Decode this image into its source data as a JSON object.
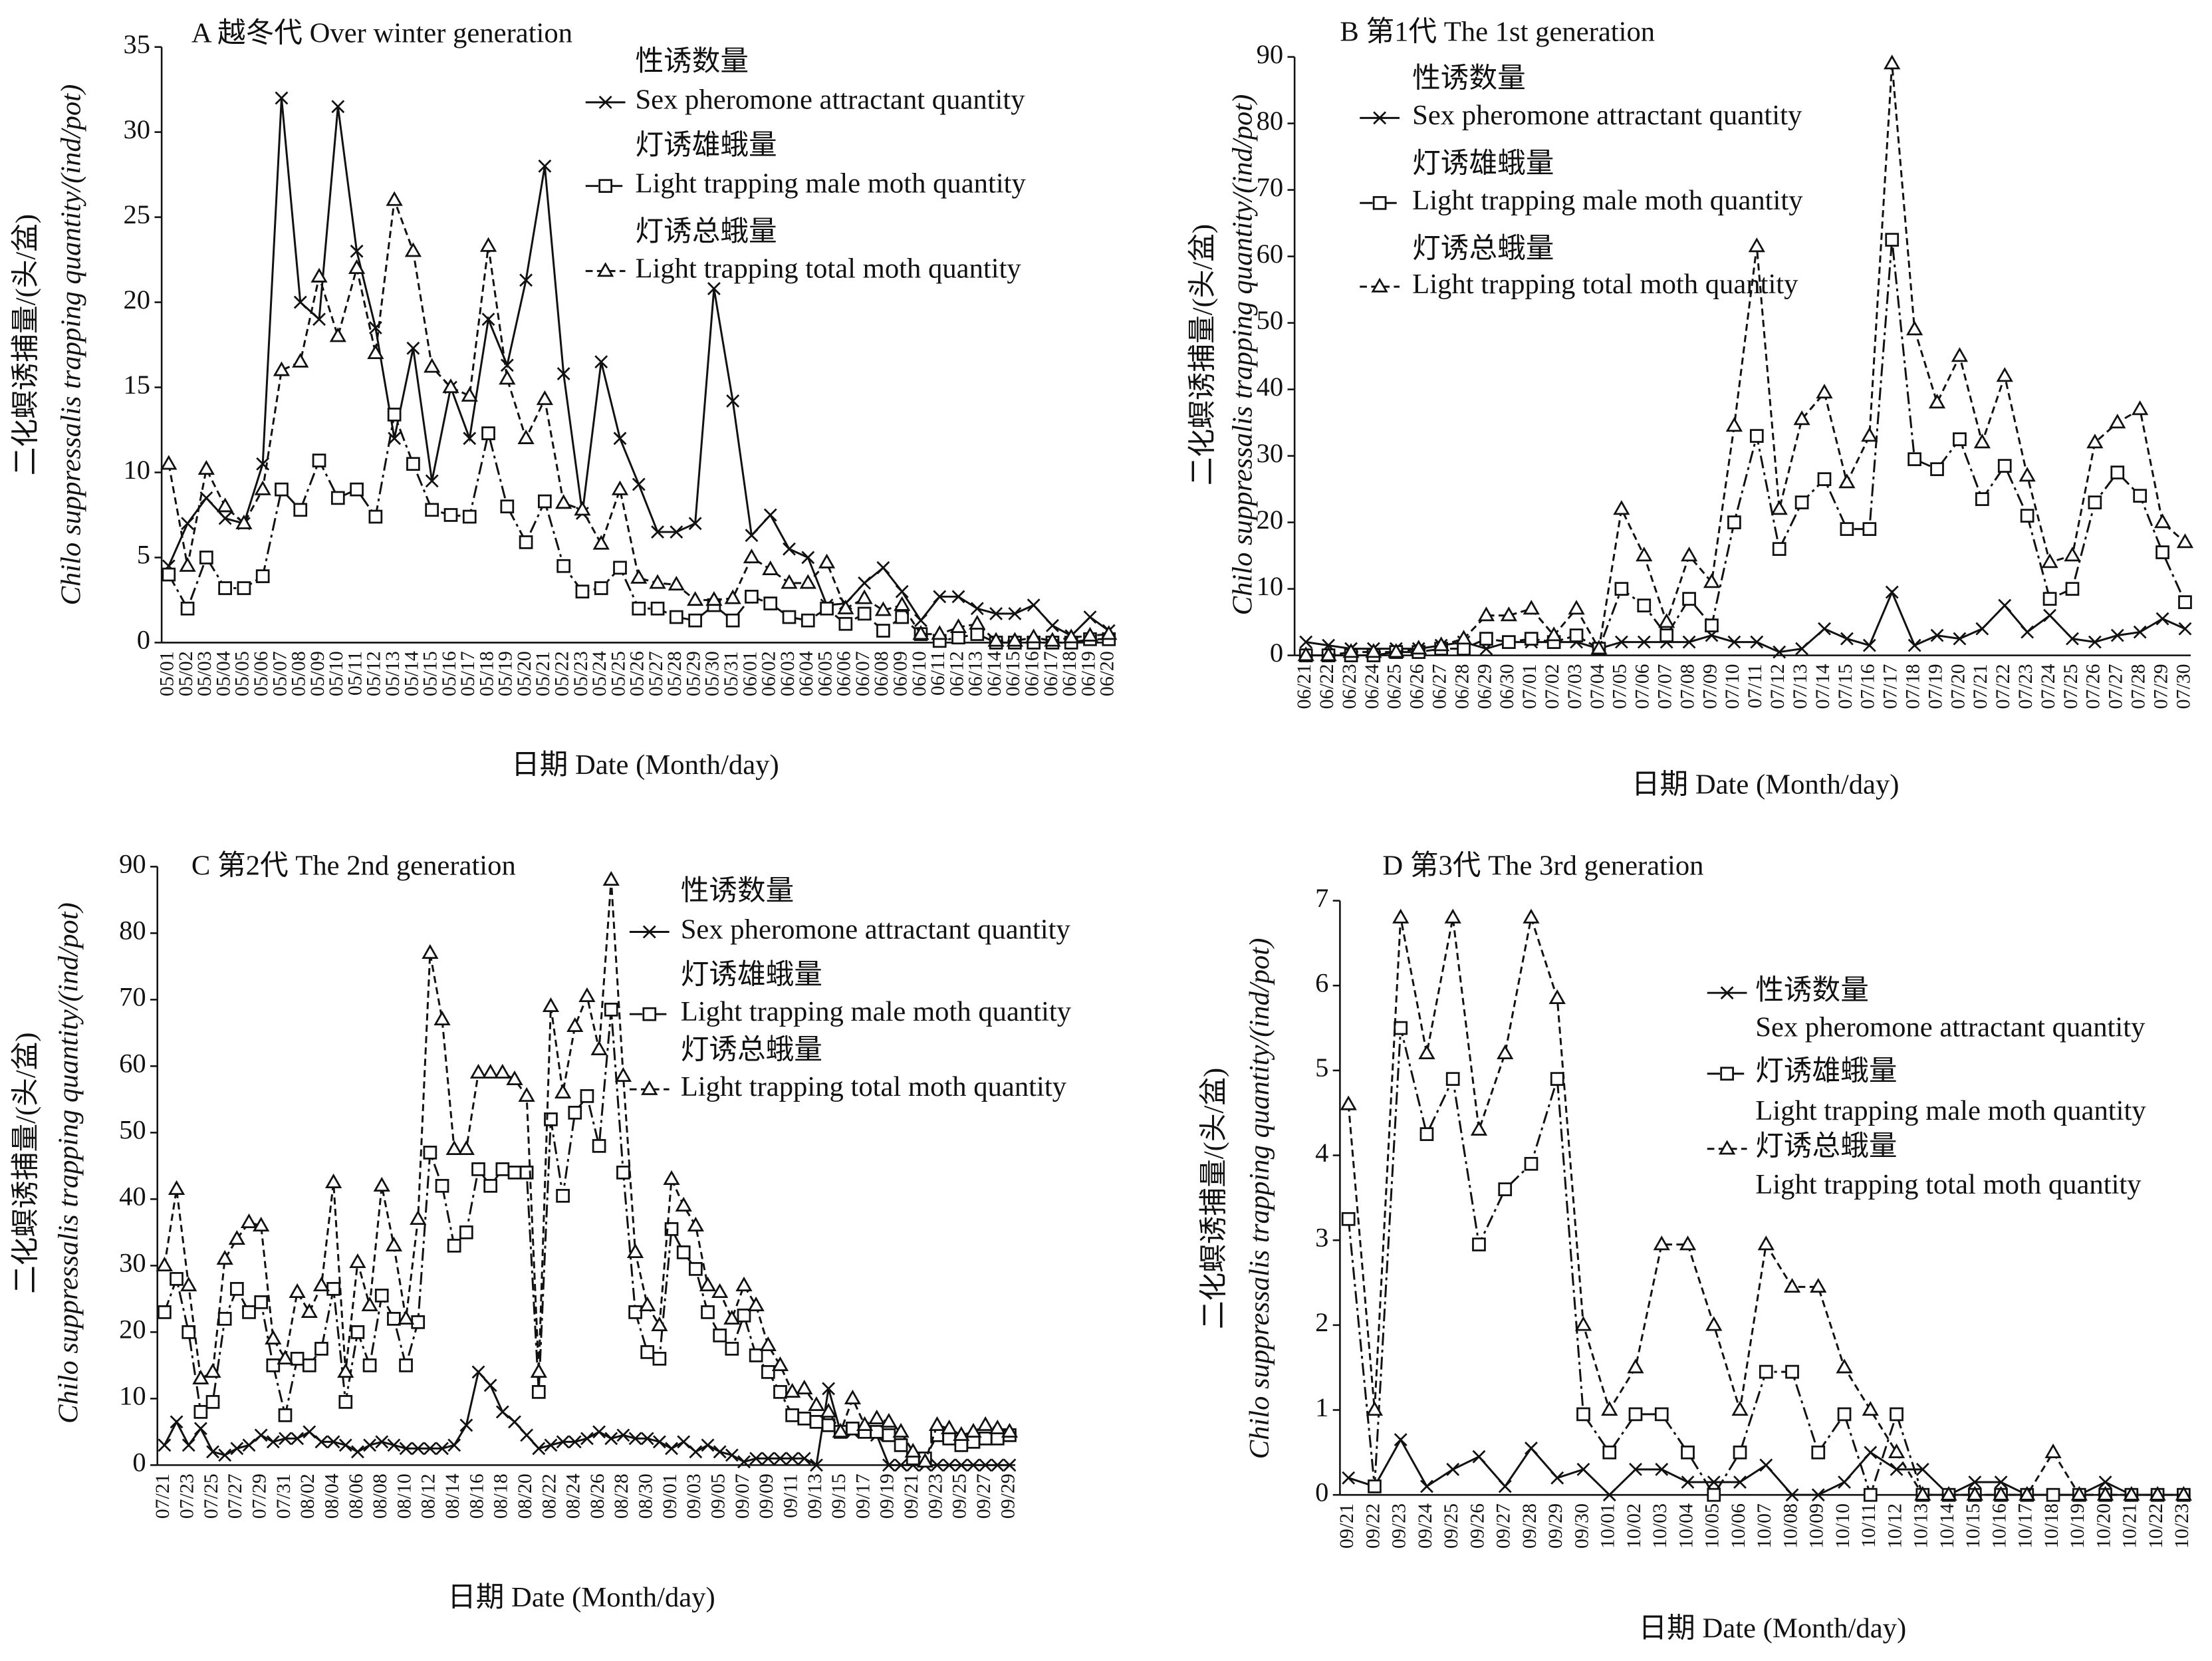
{
  "chart_data": [
    {
      "type": "line",
      "title": "A  越冬代 Over winter generation",
      "x_label": "日期 Date (Month/day)",
      "y_label": [
        "二化螟诱捕量/(头/盆)",
        "Chilo suppressalis trapping quantity/(ind/pot)"
      ],
      "categories": [
        "05/01",
        "05/02",
        "05/03",
        "05/04",
        "05/05",
        "05/06",
        "05/07",
        "05/08",
        "05/09",
        "05/10",
        "05/11",
        "05/12",
        "05/13",
        "05/14",
        "05/15",
        "05/16",
        "05/17",
        "05/18",
        "05/19",
        "05/20",
        "05/21",
        "05/22",
        "05/23",
        "05/24",
        "05/25",
        "05/26",
        "05/27",
        "05/28",
        "05/29",
        "05/30",
        "05/31",
        "06/01",
        "06/02",
        "06/03",
        "06/04",
        "06/05",
        "06/06",
        "06/07",
        "06/08",
        "06/09",
        "06/10",
        "06/11",
        "06/12",
        "06/13",
        "06/14",
        "06/15",
        "06/16",
        "06/17",
        "06/18",
        "06/19",
        "06/20"
      ],
      "ylim": [
        0,
        35
      ],
      "yticks": [
        0,
        5,
        10,
        15,
        20,
        25,
        30,
        35
      ],
      "series": [
        {
          "name": "Sex pheromone attractant quantity",
          "name_cn": "性诱数量",
          "color": "#111",
          "line_style": "solid",
          "marker": "x",
          "values": [
            4.5,
            7,
            8.5,
            7.3,
            7,
            10.5,
            32,
            20,
            19,
            31.5,
            23,
            18.5,
            12,
            17.3,
            9.5,
            15,
            12,
            19,
            16.3,
            21.3,
            28,
            15.8,
            7.6,
            16.5,
            12,
            9.3,
            6.5,
            6.5,
            7,
            20.8,
            14.2,
            6.3,
            7.5,
            5.5,
            5,
            2.2,
            2.3,
            3.5,
            4.4,
            3,
            1.3,
            2.7,
            2.7,
            2,
            1.7,
            1.7,
            2.2,
            1,
            0.4,
            1.5,
            0.7
          ]
        },
        {
          "name": "Light trapping male moth quantity",
          "name_cn": "灯诱雄蛾量",
          "color": "#111",
          "line_style": "dashdot",
          "marker": "square",
          "values": [
            4,
            2,
            5,
            3.2,
            3.2,
            3.9,
            9,
            7.8,
            10.7,
            8.5,
            9,
            7.4,
            13.4,
            10.5,
            7.8,
            7.5,
            7.4,
            12.3,
            8,
            5.9,
            8.3,
            4.5,
            3,
            3.2,
            4.4,
            2,
            2,
            1.5,
            1.3,
            2.2,
            1.3,
            2.7,
            2.3,
            1.5,
            1.3,
            2,
            1.1,
            1.7,
            0.7,
            1.5,
            0.5,
            0.1,
            0.3,
            0.5,
            0,
            0,
            0,
            0,
            0,
            0.2,
            0.2
          ]
        },
        {
          "name": "Light trapping total moth quantity",
          "name_cn": "灯诱总蛾量",
          "color": "#111",
          "line_style": "dashed",
          "marker": "triangle",
          "values": [
            10.5,
            4.5,
            10.2,
            8,
            7,
            9,
            16,
            16.5,
            21.5,
            18,
            22,
            17,
            26,
            23,
            16.2,
            15,
            14.5,
            23.3,
            15.5,
            12,
            14.3,
            8.2,
            7.8,
            5.8,
            9,
            3.8,
            3.5,
            3.4,
            2.5,
            2.5,
            2.6,
            5,
            4.3,
            3.5,
            3.5,
            4.7,
            2,
            2.6,
            1.9,
            2.2,
            0.5,
            0.5,
            0.9,
            1.1,
            0.1,
            0.1,
            0.3,
            0.1,
            0.3,
            0.4,
            0.5
          ]
        }
      ]
    },
    {
      "type": "line",
      "title": "B 第1代 The 1st generation",
      "x_label": "日期 Date (Month/day)",
      "y_label": [
        "二化螟诱捕量/(头/盆)",
        "Chilo suppressalis trapping quantity/(ind/pot)"
      ],
      "categories": [
        "06/21",
        "06/22",
        "06/23",
        "06/24",
        "06/25",
        "06/26",
        "06/27",
        "06/28",
        "06/29",
        "06/30",
        "07/01",
        "07/02",
        "07/03",
        "07/04",
        "07/05",
        "07/06",
        "07/07",
        "07/08",
        "07/09",
        "07/10",
        "07/11",
        "07/12",
        "07/13",
        "07/14",
        "07/15",
        "07/16",
        "07/17",
        "07/18",
        "07/19",
        "07/20",
        "07/21",
        "07/22",
        "07/23",
        "07/24",
        "07/25",
        "07/26",
        "07/27",
        "07/28",
        "07/29",
        "07/30"
      ],
      "ylim": [
        0,
        90
      ],
      "yticks": [
        0,
        10,
        20,
        30,
        40,
        50,
        60,
        70,
        80,
        90
      ],
      "series": [
        {
          "name": "Sex pheromone attractant quantity",
          "name_cn": "性诱数量",
          "color": "#111",
          "line_style": "solid",
          "marker": "x",
          "values": [
            2,
            1.5,
            1,
            1,
            1,
            1,
            1.5,
            2,
            1,
            2,
            2,
            2,
            2,
            1,
            2,
            2,
            2,
            2,
            3,
            2,
            2,
            0.5,
            1,
            4,
            2.5,
            1.5,
            9.5,
            1.5,
            3,
            2.5,
            4,
            7.5,
            3.5,
            6,
            2.5,
            2,
            3,
            3.5,
            5.5,
            4
          ]
        },
        {
          "name": "Light trapping male moth quantity",
          "name_cn": "灯诱雄蛾量",
          "color": "#111",
          "line_style": "dashdot",
          "marker": "square",
          "values": [
            0,
            0,
            0,
            0,
            0.5,
            0.5,
            1,
            1,
            2.5,
            2,
            2.5,
            2,
            3,
            1,
            10,
            7.5,
            3,
            8.5,
            4.5,
            20,
            33,
            16,
            23,
            26.5,
            19,
            19,
            62.5,
            29.5,
            28,
            32.5,
            23.5,
            28.5,
            21,
            8.5,
            10,
            23,
            27.5,
            24,
            15.5,
            8
          ]
        },
        {
          "name": "Light trapping total moth quantity",
          "name_cn": "灯诱总蛾量",
          "color": "#111",
          "line_style": "dashed",
          "marker": "triangle",
          "values": [
            0,
            0,
            0.5,
            0.5,
            0.5,
            1,
            1.5,
            2.5,
            6,
            6,
            7,
            3,
            7,
            1,
            22,
            15,
            5,
            15,
            11,
            34.5,
            61.5,
            22,
            35.5,
            39.5,
            26,
            33,
            89,
            49,
            38,
            45,
            32,
            42,
            27,
            14,
            15,
            32,
            35,
            37,
            20,
            17
          ]
        }
      ]
    },
    {
      "type": "line",
      "title": "C 第2代 The 2nd generation",
      "x_label": "日期 Date (Month/day)",
      "y_label": [
        "二化螟诱捕量/(头/盆)",
        "Chilo suppressalis trapping quantity/(ind/pot)"
      ],
      "categories": [
        "07/21",
        null,
        "07/23",
        null,
        "07/25",
        null,
        "07/27",
        null,
        "07/29",
        null,
        "07/31",
        null,
        "08/02",
        null,
        "08/04",
        null,
        "08/06",
        null,
        "08/08",
        null,
        "08/10",
        null,
        "08/12",
        null,
        "08/14",
        null,
        "08/16",
        null,
        "08/18",
        null,
        "08/20",
        null,
        "08/22",
        null,
        "08/24",
        null,
        "08/26",
        null,
        "08/28",
        null,
        "08/30",
        null,
        "09/01",
        null,
        "09/03",
        null,
        "09/05",
        null,
        "09/07",
        null,
        "09/09",
        null,
        "09/11",
        null,
        "09/13",
        null,
        "09/15",
        null,
        "09/17",
        null,
        "09/19",
        null,
        "09/21",
        null,
        "09/23",
        null,
        "09/25",
        null,
        "09/27",
        null,
        "09/29"
      ],
      "ylim": [
        0,
        90
      ],
      "yticks": [
        0,
        10,
        20,
        30,
        40,
        50,
        60,
        70,
        80,
        90
      ],
      "series": [
        {
          "name": "Sex pheromone attractant quantity",
          "name_cn": "性诱数量",
          "color": "#111",
          "line_style": "solid",
          "marker": "x",
          "values": [
            3,
            6.5,
            3,
            5.5,
            2,
            1.5,
            2.5,
            3,
            4.5,
            3.5,
            4,
            4,
            5,
            3.5,
            3.5,
            3,
            2,
            3,
            3.5,
            3,
            2.5,
            2.5,
            2.5,
            2.5,
            3,
            6,
            14,
            12,
            8,
            6.5,
            4.5,
            2.5,
            3,
            3.5,
            3.5,
            4,
            5,
            4,
            4.5,
            4,
            4,
            3.5,
            2.5,
            3.5,
            2,
            3,
            2,
            1.5,
            0.5,
            1,
            1,
            1,
            1,
            1,
            0,
            11.5,
            5,
            5,
            5,
            4.5,
            0,
            0,
            0,
            0,
            0,
            0,
            0,
            0,
            0,
            0,
            0
          ]
        },
        {
          "name": "Light trapping male moth quantity",
          "name_cn": "灯诱雄蛾量",
          "color": "#111",
          "line_style": "dashdot",
          "marker": "square",
          "values": [
            23,
            28,
            20,
            8,
            9.5,
            22,
            26.5,
            23,
            24.5,
            15,
            7.5,
            16,
            15,
            17.5,
            26.5,
            9.5,
            20,
            15,
            25.5,
            22,
            15,
            21.5,
            47,
            42,
            33,
            35,
            44.5,
            42,
            44.5,
            44,
            44,
            11,
            52,
            40.5,
            53,
            55.5,
            48,
            68.5,
            44,
            23,
            17,
            16,
            35.5,
            32,
            29.5,
            23,
            19.5,
            17.5,
            22.5,
            16.5,
            14,
            11,
            7.5,
            7,
            6.5,
            6,
            5,
            5.5,
            5,
            5,
            4.5,
            3,
            1,
            1,
            4.5,
            4,
            3,
            3.5,
            4,
            4,
            4.5
          ]
        },
        {
          "name": "Light trapping total moth quantity",
          "name_cn": "灯诱总蛾量",
          "color": "#111",
          "line_style": "dashed",
          "marker": "triangle",
          "values": [
            30,
            41.5,
            27,
            13,
            14,
            31,
            34,
            36.5,
            36,
            19,
            16,
            26,
            23,
            27,
            42.5,
            14,
            30.5,
            24,
            42,
            33,
            22,
            37,
            77,
            67,
            47.5,
            47.5,
            59,
            59,
            59,
            58,
            55.5,
            14,
            69,
            56,
            66,
            70.5,
            62.5,
            88,
            58.5,
            32,
            24,
            21,
            43,
            39,
            36,
            27,
            26,
            22,
            27,
            24,
            18,
            15,
            11,
            11.5,
            9,
            8,
            5,
            10,
            6,
            7,
            6.5,
            5,
            2,
            0.5,
            6,
            5.5,
            4.5,
            5,
            6,
            5.5,
            5
          ]
        }
      ]
    },
    {
      "type": "line",
      "title": "D 第3代 The 3rd generation",
      "x_label": "日期 Date (Month/day)",
      "y_label": [
        "二化螟诱捕量/(头/盆)",
        "Chilo suppressalis trapping quantity/(ind/pot)"
      ],
      "categories": [
        "09/21",
        "09/22",
        "09/23",
        "09/24",
        "09/25",
        "09/26",
        "09/27",
        "09/28",
        "09/29",
        "09/30",
        "10/01",
        "10/02",
        "10/03",
        "10/04",
        "10/05",
        "10/06",
        "10/07",
        "10/08",
        "10/09",
        "10/10",
        "10/11",
        "10/12",
        "10/13",
        "10/14",
        "10/15",
        "10/16",
        "10/17",
        "10/18",
        "10/19",
        "10/20",
        "10/21",
        "10/22",
        "10/23"
      ],
      "ylim": [
        0,
        7
      ],
      "yticks": [
        0,
        1,
        2,
        3,
        4,
        5,
        6,
        7
      ],
      "series": [
        {
          "name": "Sex pheromone attractant quantity",
          "name_cn": "性诱数量",
          "color": "#111",
          "line_style": "solid",
          "marker": "x",
          "values": [
            0.2,
            0.1,
            0.65,
            0.1,
            0.3,
            0.45,
            0.1,
            0.55,
            0.2,
            0.3,
            0,
            0.3,
            0.3,
            0.15,
            0.15,
            0.15,
            0.35,
            0,
            0,
            0.15,
            0.5,
            0.3,
            0.3,
            0,
            0.15,
            0.15,
            0,
            0,
            0,
            0.15,
            0,
            0,
            0
          ]
        },
        {
          "name": "Light trapping male moth quantity",
          "name_cn": "灯诱雄蛾量",
          "color": "#111",
          "line_style": "dashdot",
          "marker": "square",
          "values": [
            3.25,
            0.1,
            5.5,
            4.25,
            4.9,
            2.95,
            3.6,
            3.9,
            4.9,
            0.95,
            0.5,
            0.95,
            0.95,
            0.5,
            0,
            0.5,
            1.45,
            1.45,
            0.5,
            0.95,
            0,
            0.95,
            0,
            0,
            0,
            0,
            0,
            0,
            0,
            0,
            0,
            0,
            0
          ]
        },
        {
          "name": "Light trapping total moth quantity",
          "name_cn": "灯诱总蛾量",
          "color": "#111",
          "line_style": "dashed",
          "marker": "triangle",
          "values": [
            4.6,
            1,
            6.8,
            5.2,
            6.8,
            4.3,
            5.2,
            6.8,
            5.85,
            2,
            1,
            1.5,
            2.95,
            2.95,
            2,
            1,
            2.95,
            2.45,
            2.45,
            1.5,
            1,
            0.5,
            0,
            0,
            0,
            0,
            0,
            0.5,
            0,
            0,
            0,
            0,
            0
          ]
        }
      ]
    }
  ]
}
